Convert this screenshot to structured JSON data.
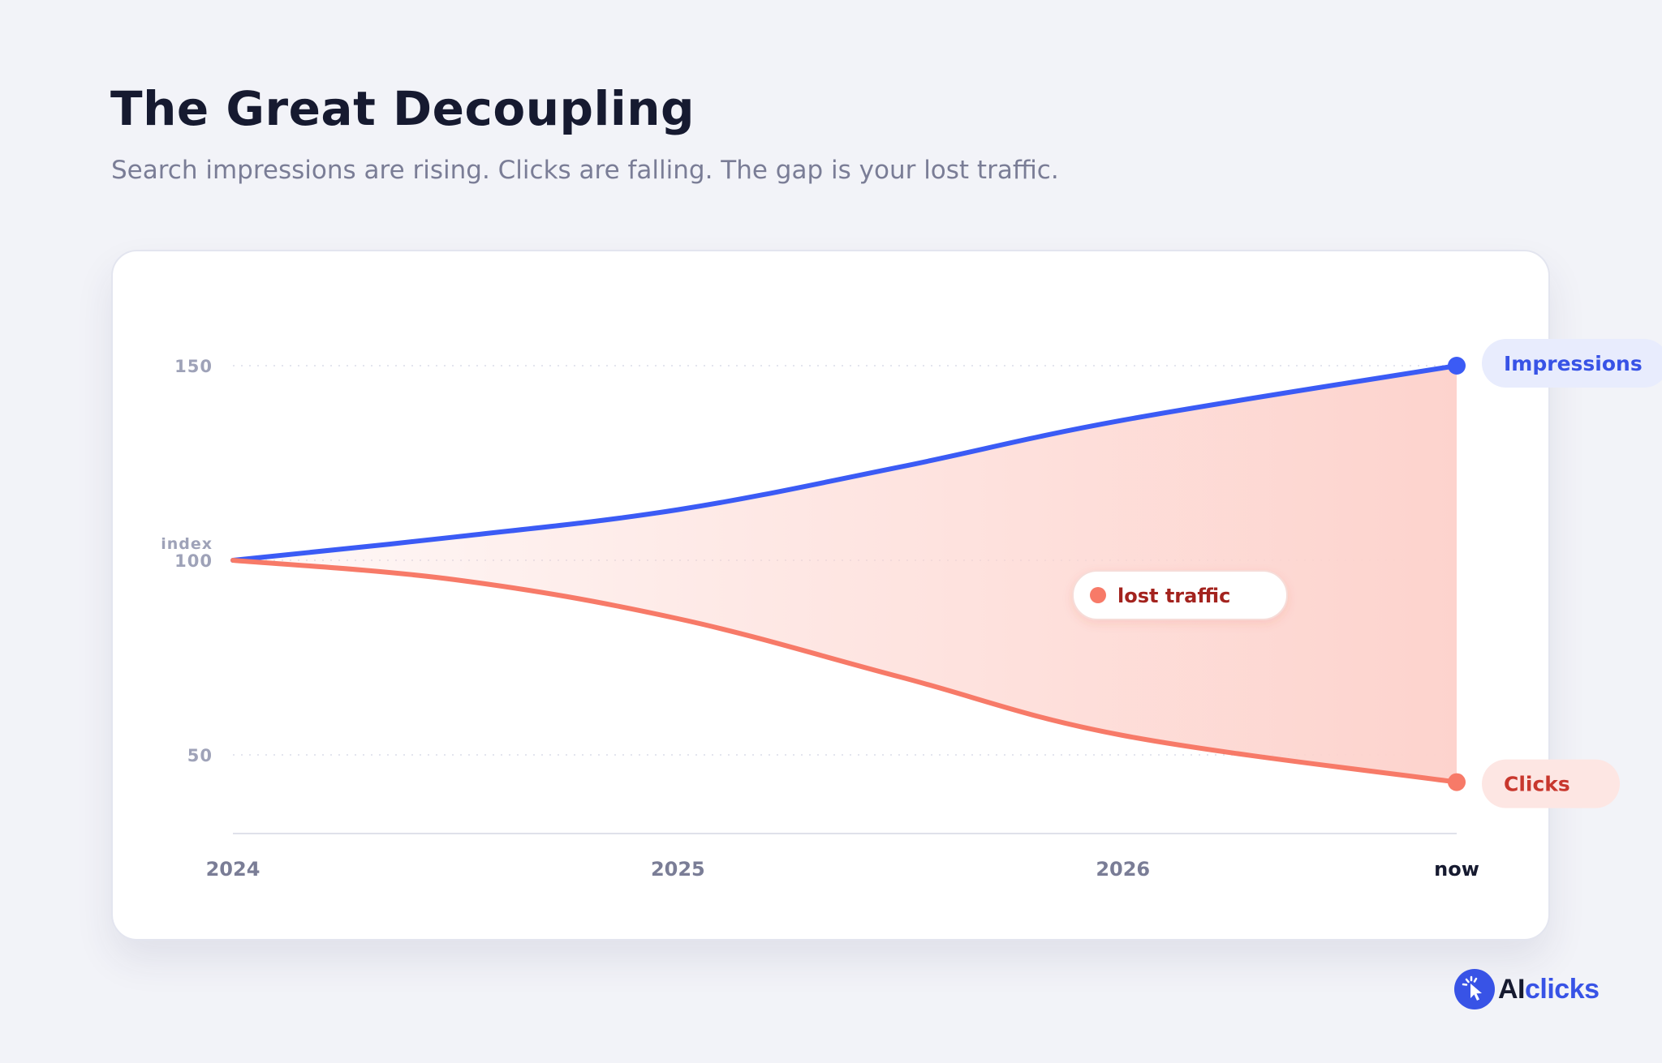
{
  "header": {
    "title": "The Great Decoupling",
    "subtitle": "Search impressions are rising. Clicks are falling. The gap is your lost traffic."
  },
  "chart_data": {
    "type": "line",
    "x_tick_labels": [
      "2024",
      "2025",
      "2026",
      "now"
    ],
    "x": [
      2024,
      2024.5,
      2025,
      2025.5,
      2026,
      2026.75
    ],
    "ylabel": "index",
    "y_ticks": [
      50,
      100,
      150
    ],
    "ylim": [
      30,
      150
    ],
    "grid": "horizontal dotted",
    "series": [
      {
        "name": "Impressions",
        "color": "#3b5bf5",
        "values": [
          100,
          106,
          113,
          124,
          136,
          150
        ]
      },
      {
        "name": "Clicks",
        "color": "#f77a68",
        "values": [
          100,
          95,
          85,
          70,
          55,
          43
        ]
      }
    ],
    "gap_annotation": "lost traffic",
    "gap_color": "#fdd3cd",
    "end_labels_placement": "right of line ends"
  },
  "logo": {
    "prefix": "AI",
    "suffix": "clicks",
    "icon": "cursor-click-icon",
    "color": "#3853e6"
  }
}
